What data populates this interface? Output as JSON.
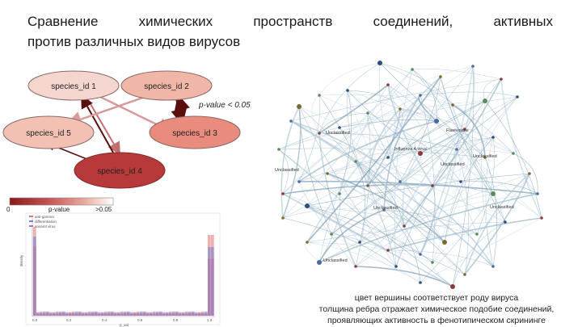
{
  "title": {
    "line1_words": [
      "Сравнение",
      "химических",
      "пространств",
      "соединений,",
      "активных"
    ],
    "line2": "против различных видов вирусов"
  },
  "nodes": [
    {
      "id": "n1",
      "label": "species_id 1",
      "color": "#f5d6cf"
    },
    {
      "id": "n2",
      "label": "species_id 2",
      "color": "#f0b6a6"
    },
    {
      "id": "n3",
      "label": "species_id 3",
      "color": "#e98b7d"
    },
    {
      "id": "n4",
      "label": "species_id 4",
      "color": "#b8393a"
    },
    {
      "id": "n5",
      "label": "species_id 5",
      "color": "#f3c1b4"
    }
  ],
  "pvalue_note": "p-value < 0.05",
  "colorbar": {
    "min_label": "0",
    "mid_label": "p-value",
    "max_label": ">0.05",
    "colors": [
      "#8b1a1a",
      "#c0504d",
      "#e8a39a",
      "#ffffff"
    ]
  },
  "histogram": {
    "legend": [
      "anti-gamma",
      "differentiation",
      "ansamt virus"
    ],
    "colors": [
      "#e07070",
      "#7080d0",
      "#b070b0"
    ],
    "xlabel": "p_val",
    "ylabel": "density",
    "xticks": [
      "0.0",
      "0.2",
      "0.4",
      "0.6",
      "0.8",
      "1.0"
    ]
  },
  "network": {
    "node_labels": [
      "Unclassified",
      "Unclassified",
      "Flaviviridae",
      "Unclassified",
      "Influenza A virus",
      "Unclassified",
      "Unclassified",
      "Unclassified",
      "Unclassified"
    ]
  },
  "caption": [
    "цвет вершины соответствует роду вируса",
    "толщина ребра отражает химическое подобие соединений,",
    "проявляющих активность в фенотипическом скрининге"
  ]
}
